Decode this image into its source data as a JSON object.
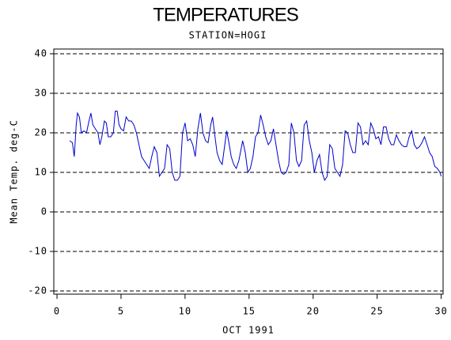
{
  "chart_data": {
    "type": "line",
    "title": "TEMPERATURES",
    "subtitle": "STATION=HOGI",
    "xlabel": "OCT 1991",
    "ylabel": "Mean Temp. deg-C",
    "xlim": [
      -0.25,
      30.15
    ],
    "ylim": [
      -20.8,
      41.2
    ],
    "xticks": [
      0,
      5,
      10,
      15,
      20,
      25,
      30
    ],
    "yticks": [
      -20,
      -10,
      0,
      10,
      20,
      30,
      40
    ],
    "grid": true,
    "series": [
      {
        "color": "#0000cc",
        "x": [
          1.0,
          1.2,
          1.35,
          1.5,
          1.6,
          1.75,
          1.9,
          2.1,
          2.3,
          2.5,
          2.65,
          2.8,
          3.0,
          3.2,
          3.35,
          3.5,
          3.7,
          3.85,
          4.0,
          4.2,
          4.4,
          4.55,
          4.7,
          4.85,
          5.0,
          5.2,
          5.4,
          5.6,
          5.8,
          6.0,
          6.2,
          6.4,
          6.6,
          6.8,
          7.0,
          7.2,
          7.4,
          7.6,
          7.8,
          8.0,
          8.2,
          8.4,
          8.6,
          8.8,
          9.0,
          9.2,
          9.4,
          9.6,
          9.8,
          10.0,
          10.2,
          10.4,
          10.6,
          10.8,
          11.0,
          11.2,
          11.4,
          11.6,
          11.8,
          12.0,
          12.15,
          12.3,
          12.5,
          12.7,
          12.9,
          13.1,
          13.25,
          13.4,
          13.6,
          13.8,
          14.0,
          14.2,
          14.5,
          14.7,
          14.9,
          15.1,
          15.3,
          15.5,
          15.7,
          15.9,
          16.1,
          16.3,
          16.5,
          16.7,
          16.9,
          17.1,
          17.3,
          17.5,
          17.7,
          17.9,
          18.1,
          18.3,
          18.5,
          18.7,
          18.9,
          19.1,
          19.3,
          19.5,
          19.7,
          19.9,
          20.1,
          20.3,
          20.5,
          20.7,
          20.9,
          21.1,
          21.3,
          21.5,
          21.7,
          21.9,
          22.1,
          22.3,
          22.5,
          22.7,
          22.9,
          23.1,
          23.3,
          23.5,
          23.7,
          23.9,
          24.1,
          24.3,
          24.5,
          24.7,
          24.9,
          25.1,
          25.3,
          25.5,
          25.7,
          25.9,
          26.1,
          26.3,
          26.5,
          26.7,
          26.9,
          27.1,
          27.3,
          27.5,
          27.7,
          27.9,
          28.1,
          28.3,
          28.5,
          28.7,
          28.9,
          29.1,
          29.3,
          29.5,
          29.7,
          29.9,
          30.0
        ],
        "values": [
          18,
          17.5,
          14,
          22,
          25,
          24,
          20,
          20.5,
          20,
          23,
          25,
          22,
          21,
          20,
          17,
          19,
          23,
          22.5,
          19,
          19,
          20,
          25.5,
          25.5,
          22,
          21,
          20.5,
          24,
          23,
          23,
          22,
          20,
          17,
          14,
          13,
          12,
          11,
          14,
          16.5,
          15,
          9,
          10,
          11,
          17,
          16,
          10,
          8,
          8,
          9,
          20,
          22.5,
          18,
          18.5,
          17,
          14,
          21,
          25,
          20,
          18,
          17.5,
          22,
          24,
          20,
          15,
          13,
          12,
          17,
          20.5,
          18,
          14,
          12,
          11,
          13,
          18,
          15,
          10,
          11,
          14,
          19,
          20,
          24.5,
          22,
          19,
          17,
          18,
          21,
          17,
          13,
          10,
          9.5,
          10,
          12,
          22.5,
          20,
          13,
          11.5,
          13,
          22,
          23,
          18,
          15,
          10,
          13,
          14.5,
          10,
          8,
          9,
          17,
          16,
          11,
          10,
          9,
          12,
          20.5,
          20,
          17,
          15,
          15,
          22.5,
          21.5,
          17,
          18,
          17,
          22.5,
          21,
          18.5,
          19,
          17,
          21.5,
          21.5,
          18.5,
          17,
          17,
          19.5,
          18,
          17,
          16.5,
          16.5,
          19,
          20.5,
          17,
          16,
          16.5,
          17.5,
          19,
          17,
          15,
          14,
          11.5,
          11,
          10,
          9
        ]
      }
    ]
  }
}
